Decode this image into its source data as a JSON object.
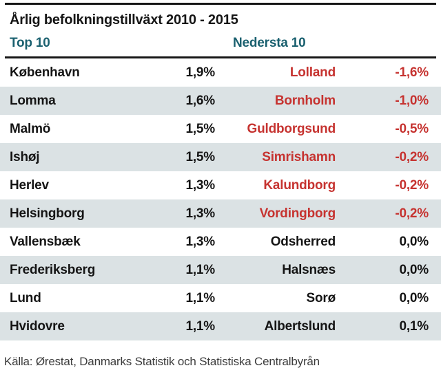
{
  "title": "Årlig befolkningstillväxt 2010 - 2015",
  "column_headers": {
    "top": "Top 10",
    "bottom": "Nedersta 10"
  },
  "colors": {
    "header_teal": "#1a606f",
    "negative_red": "#c63330",
    "row_alt_bg": "#dbe2e4",
    "text_black": "#151515",
    "source_grey": "#3c3c3c"
  },
  "rows": [
    {
      "top_name": "København",
      "top_value": "1,9%",
      "bottom_name": "Lolland",
      "bottom_value": "-1,6%",
      "bottom_negative": true
    },
    {
      "top_name": "Lomma",
      "top_value": "1,6%",
      "bottom_name": "Bornholm",
      "bottom_value": "-1,0%",
      "bottom_negative": true
    },
    {
      "top_name": "Malmö",
      "top_value": "1,5%",
      "bottom_name": "Guldborgsund",
      "bottom_value": "-0,5%",
      "bottom_negative": true
    },
    {
      "top_name": "Ishøj",
      "top_value": "1,5%",
      "bottom_name": "Simrishamn",
      "bottom_value": "-0,2%",
      "bottom_negative": true
    },
    {
      "top_name": "Herlev",
      "top_value": "1,3%",
      "bottom_name": "Kalundborg",
      "bottom_value": "-0,2%",
      "bottom_negative": true
    },
    {
      "top_name": "Helsingborg",
      "top_value": "1,3%",
      "bottom_name": "Vordingborg",
      "bottom_value": "-0,2%",
      "bottom_negative": true
    },
    {
      "top_name": "Vallensbæk",
      "top_value": "1,3%",
      "bottom_name": "Odsherred",
      "bottom_value": "0,0%",
      "bottom_negative": false
    },
    {
      "top_name": "Frederiksberg",
      "top_value": "1,1%",
      "bottom_name": "Halsnæs",
      "bottom_value": "0,0%",
      "bottom_negative": false
    },
    {
      "top_name": "Lund",
      "top_value": "1,1%",
      "bottom_name": "Sorø",
      "bottom_value": "0,0%",
      "bottom_negative": false
    },
    {
      "top_name": "Hvidovre",
      "top_value": "1,1%",
      "bottom_name": "Albertslund",
      "bottom_value": "0,1%",
      "bottom_negative": false
    }
  ],
  "source": "Källa: Ørestat, Danmarks Statistik och Statistiska Centralbyrån",
  "chart_data": {
    "type": "table",
    "title": "Årlig befolkningstillväxt 2010 - 2015",
    "unit": "% per år",
    "groups": [
      {
        "name": "Top 10",
        "municipalities": [
          "København",
          "Lomma",
          "Malmö",
          "Ishøj",
          "Herlev",
          "Helsingborg",
          "Vallensbæk",
          "Frederiksberg",
          "Lund",
          "Hvidovre"
        ],
        "values": [
          1.9,
          1.6,
          1.5,
          1.5,
          1.3,
          1.3,
          1.3,
          1.1,
          1.1,
          1.1
        ]
      },
      {
        "name": "Nedersta 10",
        "municipalities": [
          "Lolland",
          "Bornholm",
          "Guldborgsund",
          "Simrishamn",
          "Kalundborg",
          "Vordingborg",
          "Odsherred",
          "Halsnæs",
          "Sorø",
          "Albertslund"
        ],
        "values": [
          -1.6,
          -1.0,
          -0.5,
          -0.2,
          -0.2,
          -0.2,
          0.0,
          0.0,
          0.0,
          0.1
        ]
      }
    ],
    "negative_values_highlighted_red": true,
    "source": "Källa: Ørestat, Danmarks Statistik och Statistiska Centralbyrån"
  }
}
